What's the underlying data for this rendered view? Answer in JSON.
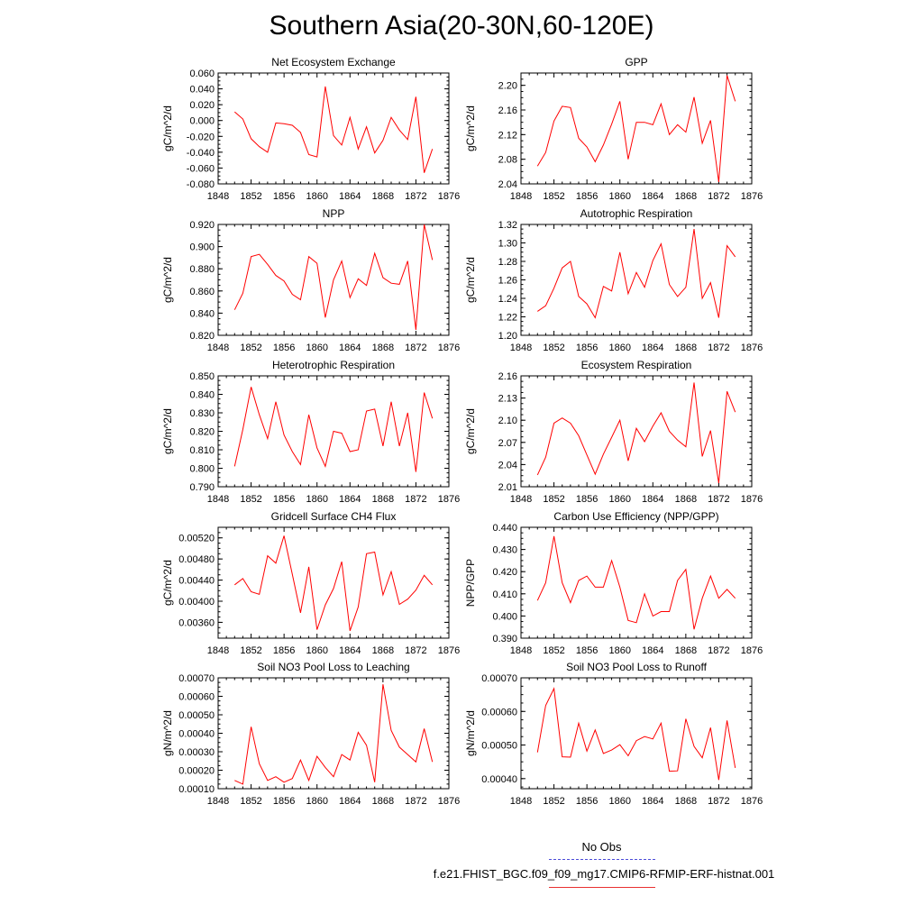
{
  "title": "Southern Asia(20-30N,60-120E)",
  "legend": {
    "obs_label": "No Obs",
    "obs_color": "#4b4bd8",
    "case_label": "f.e21.FHIST_BGC.f09_f09_mg17.CMIP6-RFMIP-ERF-histnat.001",
    "case_color": "#e83030"
  },
  "line_color": "#ff0000",
  "chart_data": [
    {
      "type": "line",
      "title": "Net Ecosystem Exchange",
      "ylabel": "gC/m^2/d",
      "xlim": [
        1848,
        1876
      ],
      "xticks": [
        1848,
        1852,
        1856,
        1860,
        1864,
        1868,
        1872,
        1876
      ],
      "ylim": [
        -0.08,
        0.06
      ],
      "yticks": [
        -0.08,
        -0.06,
        -0.04,
        -0.02,
        0.0,
        0.02,
        0.04,
        0.06
      ],
      "ytick_labels": [
        "-0.080",
        "-0.060",
        "-0.040",
        "-0.020",
        "0.000",
        "0.020",
        "0.040",
        "0.060"
      ],
      "x": [
        1850,
        1851,
        1852,
        1853,
        1854,
        1855,
        1856,
        1857,
        1858,
        1859,
        1860,
        1861,
        1862,
        1863,
        1864,
        1865,
        1866,
        1867,
        1868,
        1869,
        1870,
        1871,
        1872,
        1873,
        1874
      ],
      "values": [
        0.011,
        0.002,
        -0.023,
        -0.033,
        -0.04,
        -0.003,
        -0.004,
        -0.006,
        -0.015,
        -0.043,
        -0.046,
        0.043,
        -0.019,
        -0.031,
        0.004,
        -0.036,
        -0.008,
        -0.041,
        -0.025,
        0.004,
        -0.012,
        -0.024,
        0.03,
        -0.066,
        -0.036
      ]
    },
    {
      "type": "line",
      "title": "GPP",
      "ylabel": "gC/m^2/d",
      "xlim": [
        1848,
        1876
      ],
      "xticks": [
        1848,
        1852,
        1856,
        1860,
        1864,
        1868,
        1872,
        1876
      ],
      "ylim": [
        2.04,
        2.22
      ],
      "yticks": [
        2.04,
        2.08,
        2.12,
        2.16,
        2.2
      ],
      "ytick_labels": [
        "2.04",
        "2.08",
        "2.12",
        "2.16",
        "2.20"
      ],
      "x": [
        1850,
        1851,
        1852,
        1853,
        1854,
        1855,
        1856,
        1857,
        1858,
        1859,
        1860,
        1861,
        1862,
        1863,
        1864,
        1865,
        1866,
        1867,
        1868,
        1869,
        1870,
        1871,
        1872,
        1873,
        1874
      ],
      "values": [
        2.069,
        2.091,
        2.142,
        2.166,
        2.164,
        2.114,
        2.1,
        2.076,
        2.103,
        2.137,
        2.174,
        2.08,
        2.14,
        2.14,
        2.136,
        2.17,
        2.12,
        2.136,
        2.124,
        2.181,
        2.106,
        2.143,
        2.043,
        2.216,
        2.174
      ]
    },
    {
      "type": "line",
      "title": "NPP",
      "ylabel": "gC/m^2/d",
      "xlim": [
        1848,
        1876
      ],
      "xticks": [
        1848,
        1852,
        1856,
        1860,
        1864,
        1868,
        1872,
        1876
      ],
      "ylim": [
        0.82,
        0.92
      ],
      "yticks": [
        0.82,
        0.84,
        0.86,
        0.88,
        0.9,
        0.92
      ],
      "ytick_labels": [
        "0.820",
        "0.840",
        "0.860",
        "0.880",
        "0.900",
        "0.920"
      ],
      "x": [
        1850,
        1851,
        1852,
        1853,
        1854,
        1855,
        1856,
        1857,
        1858,
        1859,
        1860,
        1861,
        1862,
        1863,
        1864,
        1865,
        1866,
        1867,
        1868,
        1869,
        1870,
        1871,
        1872,
        1873,
        1874
      ],
      "values": [
        0.843,
        0.858,
        0.891,
        0.893,
        0.884,
        0.874,
        0.869,
        0.857,
        0.852,
        0.891,
        0.885,
        0.836,
        0.87,
        0.887,
        0.854,
        0.871,
        0.865,
        0.894,
        0.872,
        0.867,
        0.866,
        0.887,
        0.825,
        0.92,
        0.888
      ]
    },
    {
      "type": "line",
      "title": "Autotrophic Respiration",
      "ylabel": "gC/m^2/d",
      "xlim": [
        1848,
        1876
      ],
      "xticks": [
        1848,
        1852,
        1856,
        1860,
        1864,
        1868,
        1872,
        1876
      ],
      "ylim": [
        1.2,
        1.32
      ],
      "yticks": [
        1.2,
        1.22,
        1.24,
        1.26,
        1.28,
        1.3,
        1.32
      ],
      "ytick_labels": [
        "1.20",
        "1.22",
        "1.24",
        "1.26",
        "1.28",
        "1.30",
        "1.32"
      ],
      "x": [
        1850,
        1851,
        1852,
        1853,
        1854,
        1855,
        1856,
        1857,
        1858,
        1859,
        1860,
        1861,
        1862,
        1863,
        1864,
        1865,
        1866,
        1867,
        1868,
        1869,
        1870,
        1871,
        1872,
        1873,
        1874
      ],
      "values": [
        1.226,
        1.232,
        1.251,
        1.273,
        1.28,
        1.242,
        1.234,
        1.219,
        1.253,
        1.248,
        1.29,
        1.245,
        1.268,
        1.252,
        1.281,
        1.299,
        1.255,
        1.242,
        1.252,
        1.315,
        1.24,
        1.257,
        1.219,
        1.297,
        1.285
      ]
    },
    {
      "type": "line",
      "title": "Heterotrophic Respiration",
      "ylabel": "gC/m^2/d",
      "xlim": [
        1848,
        1876
      ],
      "xticks": [
        1848,
        1852,
        1856,
        1860,
        1864,
        1868,
        1872,
        1876
      ],
      "ylim": [
        0.79,
        0.85
      ],
      "yticks": [
        0.79,
        0.8,
        0.81,
        0.82,
        0.83,
        0.84,
        0.85
      ],
      "ytick_labels": [
        "0.790",
        "0.800",
        "0.810",
        "0.820",
        "0.830",
        "0.840",
        "0.850"
      ],
      "x": [
        1850,
        1851,
        1852,
        1853,
        1854,
        1855,
        1856,
        1857,
        1858,
        1859,
        1860,
        1861,
        1862,
        1863,
        1864,
        1865,
        1866,
        1867,
        1868,
        1869,
        1870,
        1871,
        1872,
        1873,
        1874
      ],
      "values": [
        0.801,
        0.821,
        0.844,
        0.829,
        0.816,
        0.836,
        0.818,
        0.809,
        0.802,
        0.829,
        0.811,
        0.801,
        0.82,
        0.819,
        0.809,
        0.81,
        0.831,
        0.832,
        0.812,
        0.836,
        0.812,
        0.83,
        0.798,
        0.841,
        0.827
      ]
    },
    {
      "type": "line",
      "title": "Ecosystem Respiration",
      "ylabel": "gC/m^2/d",
      "xlim": [
        1848,
        1876
      ],
      "xticks": [
        1848,
        1852,
        1856,
        1860,
        1864,
        1868,
        1872,
        1876
      ],
      "ylim": [
        2.01,
        2.16
      ],
      "yticks": [
        2.01,
        2.04,
        2.07,
        2.1,
        2.13,
        2.16
      ],
      "ytick_labels": [
        "2.01",
        "2.04",
        "2.07",
        "2.10",
        "2.13",
        "2.16"
      ],
      "x": [
        1850,
        1851,
        1852,
        1853,
        1854,
        1855,
        1856,
        1857,
        1858,
        1859,
        1860,
        1861,
        1862,
        1863,
        1864,
        1865,
        1866,
        1867,
        1868,
        1869,
        1870,
        1871,
        1872,
        1873,
        1874
      ],
      "values": [
        2.026,
        2.05,
        2.096,
        2.103,
        2.096,
        2.079,
        2.053,
        2.027,
        2.054,
        2.077,
        2.1,
        2.045,
        2.089,
        2.071,
        2.092,
        2.11,
        2.085,
        2.073,
        2.064,
        2.151,
        2.051,
        2.086,
        2.015,
        2.139,
        2.111
      ]
    },
    {
      "type": "line",
      "title": "Gridcell Surface CH4 Flux",
      "ylabel": "gC/m^2/d",
      "xlim": [
        1848,
        1876
      ],
      "xticks": [
        1848,
        1852,
        1856,
        1860,
        1864,
        1868,
        1872,
        1876
      ],
      "ylim": [
        0.0033,
        0.0054
      ],
      "yticks": [
        0.0036,
        0.004,
        0.0044,
        0.0048,
        0.0052
      ],
      "ytick_labels": [
        "0.00360",
        "0.00400",
        "0.00440",
        "0.00480",
        "0.00520"
      ],
      "x": [
        1850,
        1851,
        1852,
        1853,
        1854,
        1855,
        1856,
        1857,
        1858,
        1859,
        1860,
        1861,
        1862,
        1863,
        1864,
        1865,
        1866,
        1867,
        1868,
        1869,
        1870,
        1871,
        1872,
        1873,
        1874
      ],
      "values": [
        0.00431,
        0.00443,
        0.00418,
        0.00413,
        0.00486,
        0.00472,
        0.00524,
        0.00451,
        0.00378,
        0.00465,
        0.00346,
        0.00393,
        0.00424,
        0.00475,
        0.00344,
        0.00389,
        0.0049,
        0.00493,
        0.00412,
        0.00456,
        0.00394,
        0.00404,
        0.00421,
        0.00449,
        0.00431
      ]
    },
    {
      "type": "line",
      "title": "Carbon Use Efficiency (NPP/GPP)",
      "ylabel": "NPP/GPP",
      "xlim": [
        1848,
        1876
      ],
      "xticks": [
        1848,
        1852,
        1856,
        1860,
        1864,
        1868,
        1872,
        1876
      ],
      "ylim": [
        0.39,
        0.44
      ],
      "yticks": [
        0.39,
        0.4,
        0.41,
        0.42,
        0.43,
        0.44
      ],
      "ytick_labels": [
        "0.390",
        "0.400",
        "0.410",
        "0.420",
        "0.430",
        "0.440"
      ],
      "x": [
        1850,
        1851,
        1852,
        1853,
        1854,
        1855,
        1856,
        1857,
        1858,
        1859,
        1860,
        1861,
        1862,
        1863,
        1864,
        1865,
        1866,
        1867,
        1868,
        1869,
        1870,
        1871,
        1872,
        1873,
        1874
      ],
      "values": [
        0.407,
        0.415,
        0.436,
        0.415,
        0.406,
        0.416,
        0.418,
        0.413,
        0.413,
        0.425,
        0.413,
        0.398,
        0.397,
        0.41,
        0.4,
        0.402,
        0.402,
        0.416,
        0.421,
        0.394,
        0.408,
        0.418,
        0.408,
        0.412,
        0.408
      ]
    },
    {
      "type": "line",
      "title": "Soil NO3 Pool Loss to Leaching",
      "ylabel": "gN/m^2/d",
      "xlim": [
        1848,
        1876
      ],
      "xticks": [
        1848,
        1852,
        1856,
        1860,
        1864,
        1868,
        1872,
        1876
      ],
      "ylim": [
        0.0001,
        0.0007
      ],
      "yticks": [
        0.0001,
        0.0002,
        0.0003,
        0.0004,
        0.0005,
        0.0006,
        0.0007
      ],
      "ytick_labels": [
        "0.00010",
        "0.00020",
        "0.00030",
        "0.00040",
        "0.00050",
        "0.00060",
        "0.00070"
      ],
      "x": [
        1850,
        1851,
        1852,
        1853,
        1854,
        1855,
        1856,
        1857,
        1858,
        1859,
        1860,
        1861,
        1862,
        1863,
        1864,
        1865,
        1866,
        1867,
        1868,
        1869,
        1870,
        1871,
        1872,
        1873,
        1874
      ],
      "values": [
        0.000145,
        0.000125,
        0.000435,
        0.000235,
        0.000145,
        0.000165,
        0.000135,
        0.000155,
        0.000255,
        0.000145,
        0.000275,
        0.000215,
        0.000165,
        0.000285,
        0.000255,
        0.000405,
        0.000335,
        0.000135,
        0.000665,
        0.000415,
        0.000325,
        0.000285,
        0.000245,
        0.000425,
        0.000245
      ]
    },
    {
      "type": "line",
      "title": "Soil NO3 Pool Loss to Runoff",
      "ylabel": "gN/m^2/d",
      "xlim": [
        1848,
        1876
      ],
      "xticks": [
        1848,
        1852,
        1856,
        1860,
        1864,
        1868,
        1872,
        1876
      ],
      "ylim": [
        0.00037,
        0.0007
      ],
      "yticks": [
        0.0004,
        0.0005,
        0.0006,
        0.0007
      ],
      "ytick_labels": [
        "0.00040",
        "0.00050",
        "0.00060",
        "0.00070"
      ],
      "x": [
        1850,
        1851,
        1852,
        1853,
        1854,
        1855,
        1856,
        1857,
        1858,
        1859,
        1860,
        1861,
        1862,
        1863,
        1864,
        1865,
        1866,
        1867,
        1868,
        1869,
        1870,
        1871,
        1872,
        1873,
        1874
      ],
      "values": [
        0.000478,
        0.000618,
        0.000668,
        0.000465,
        0.000464,
        0.000565,
        0.000482,
        0.000545,
        0.000475,
        0.000485,
        0.000501,
        0.000468,
        0.000513,
        0.000525,
        0.000518,
        0.000565,
        0.000422,
        0.000423,
        0.000578,
        0.000496,
        0.000462,
        0.000552,
        0.000396,
        0.000573,
        0.000432
      ]
    }
  ]
}
